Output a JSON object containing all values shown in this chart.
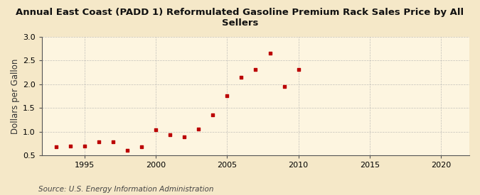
{
  "title": "Annual East Coast (PADD 1) Reformulated Gasoline Premium Rack Sales Price by All Sellers",
  "ylabel": "Dollars per Gallon",
  "source": "Source: U.S. Energy Information Administration",
  "background_color": "#f5e8c8",
  "plot_bg_color": "#fdf5e0",
  "marker_color": "#bb0000",
  "years": [
    1993,
    1994,
    1995,
    1996,
    1997,
    1998,
    1999,
    2000,
    2001,
    2002,
    2003,
    2004,
    2005,
    2006,
    2007,
    2008,
    2009,
    2010
  ],
  "values": [
    0.68,
    0.7,
    0.7,
    0.79,
    0.79,
    0.6,
    0.68,
    1.04,
    0.94,
    0.89,
    1.05,
    1.36,
    1.76,
    2.15,
    2.31,
    2.65,
    1.95,
    2.31
  ],
  "xlim": [
    1992,
    2022
  ],
  "ylim": [
    0.5,
    3.0
  ],
  "yticks": [
    0.5,
    1.0,
    1.5,
    2.0,
    2.5,
    3.0
  ],
  "xticks": [
    1995,
    2000,
    2005,
    2010,
    2015,
    2020
  ],
  "title_fontsize": 9.5,
  "label_fontsize": 8.5,
  "tick_fontsize": 8,
  "source_fontsize": 7.5,
  "grid_color": "#aaaaaa",
  "spine_color": "#555555"
}
